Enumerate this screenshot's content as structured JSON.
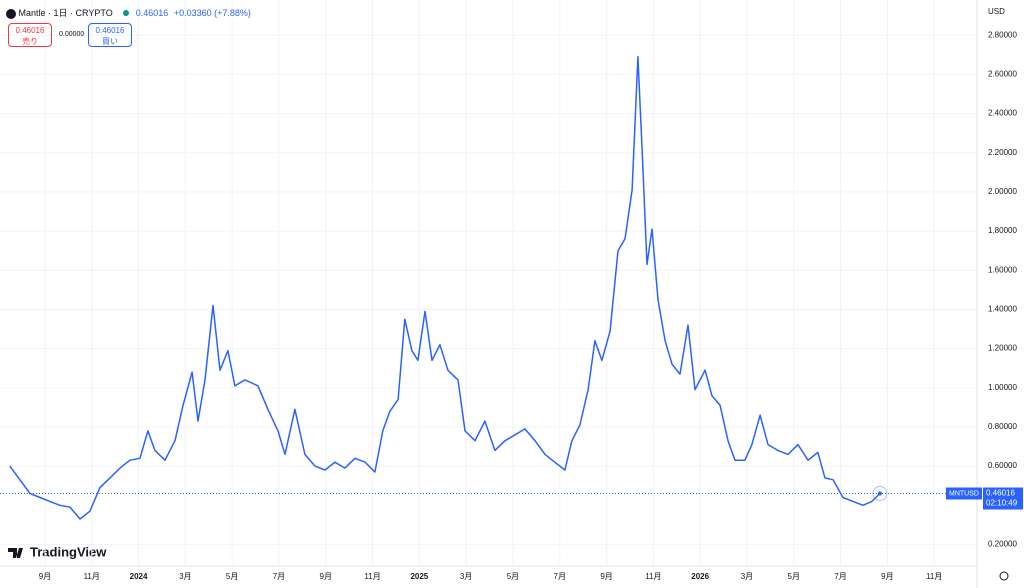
{
  "chart_data": {
    "type": "line",
    "title": "Mantle · 1日 · CRYPTO",
    "currency": "USD",
    "symbol": "MNTUSD",
    "last_price": 0.46016,
    "change": "+0.03360 (+7.88%)",
    "countdown": "02:10:49",
    "sell_price": 0.46016,
    "sell_label": "売り",
    "spread": "0.00000",
    "buy_price": 0.46016,
    "buy_label": "買い",
    "brand": "TradingView",
    "color": "#2962ff",
    "grid": true,
    "xlim": [
      6.08,
      47.83
    ],
    "ylim": [
      0.09,
      2.98
    ],
    "xticks": [
      {
        "value": 8,
        "label": "9月"
      },
      {
        "value": 10,
        "label": "11月"
      },
      {
        "value": 12,
        "label": "2024"
      },
      {
        "value": 14,
        "label": "3月"
      },
      {
        "value": 16,
        "label": "5月"
      },
      {
        "value": 18,
        "label": "7月"
      },
      {
        "value": 20,
        "label": "9月"
      },
      {
        "value": 22,
        "label": "11月"
      },
      {
        "value": 24,
        "label": "2025"
      },
      {
        "value": 26,
        "label": "3月"
      },
      {
        "value": 28,
        "label": "5月"
      },
      {
        "value": 30,
        "label": "7月"
      },
      {
        "value": 32,
        "label": "9月"
      },
      {
        "value": 34,
        "label": "11月"
      },
      {
        "value": 36,
        "label": "2026"
      },
      {
        "value": 38,
        "label": "3月"
      },
      {
        "value": 40,
        "label": "5月"
      },
      {
        "value": 42,
        "label": "7月"
      },
      {
        "value": 44,
        "label": "9月"
      },
      {
        "value": 46,
        "label": "11月"
      }
    ],
    "yticks": [
      {
        "value": 0.2,
        "label": "0.20000"
      },
      {
        "value": 0.6,
        "label": "0.60000"
      },
      {
        "value": 0.8,
        "label": "0.80000"
      },
      {
        "value": 1.0,
        "label": "1.00000"
      },
      {
        "value": 1.2,
        "label": "1.20000"
      },
      {
        "value": 1.4,
        "label": "1.40000"
      },
      {
        "value": 1.6,
        "label": "1.60000"
      },
      {
        "value": 1.8,
        "label": "1.80000"
      },
      {
        "value": 2.0,
        "label": "2.00000"
      },
      {
        "value": 2.2,
        "label": "2.20000"
      },
      {
        "value": 2.4,
        "label": "2.40000"
      },
      {
        "value": 2.6,
        "label": "2.60000"
      },
      {
        "value": 2.8,
        "label": "2.80000"
      }
    ],
    "x": [
      6.5,
      6.93,
      7.36,
      7.79,
      8.21,
      8.64,
      9.07,
      9.5,
      9.92,
      10.35,
      10.78,
      11.21,
      11.63,
      12.06,
      12.4,
      12.7,
      13.13,
      13.56,
      13.9,
      14.29,
      14.54,
      14.84,
      15.18,
      15.48,
      15.82,
      16.12,
      16.55,
      17.1,
      17.53,
      17.96,
      18.26,
      18.68,
      19.11,
      19.54,
      19.97,
      20.39,
      20.82,
      21.25,
      21.68,
      22.1,
      22.44,
      22.74,
      23.09,
      23.38,
      23.68,
      23.94,
      24.24,
      24.54,
      24.88,
      25.22,
      25.65,
      25.95,
      26.38,
      26.8,
      27.23,
      27.66,
      28.09,
      28.51,
      28.94,
      29.37,
      29.79,
      30.22,
      30.52,
      30.86,
      31.21,
      31.5,
      31.8,
      32.15,
      32.49,
      32.79,
      33.09,
      33.34,
      33.51,
      33.73,
      33.94,
      34.2,
      34.5,
      34.8,
      35.14,
      35.48,
      35.78,
      36.21,
      36.5,
      36.85,
      37.19,
      37.49,
      37.91,
      38.21,
      38.56,
      38.9,
      39.32,
      39.75,
      40.18,
      40.61,
      41.03,
      41.33,
      41.68,
      42.1,
      42.53,
      42.96,
      43.34,
      43.68
    ],
    "values": [
      0.6,
      0.53,
      0.46,
      0.44,
      0.42,
      0.4,
      0.39,
      0.33,
      0.37,
      0.49,
      0.54,
      0.59,
      0.63,
      0.64,
      0.78,
      0.68,
      0.63,
      0.73,
      0.91,
      1.08,
      0.83,
      1.04,
      1.42,
      1.09,
      1.19,
      1.01,
      1.04,
      1.01,
      0.89,
      0.78,
      0.66,
      0.89,
      0.66,
      0.6,
      0.58,
      0.62,
      0.59,
      0.64,
      0.62,
      0.57,
      0.78,
      0.88,
      0.94,
      1.35,
      1.19,
      1.14,
      1.39,
      1.14,
      1.22,
      1.09,
      1.04,
      0.78,
      0.73,
      0.83,
      0.68,
      0.73,
      0.76,
      0.79,
      0.73,
      0.66,
      0.62,
      0.58,
      0.73,
      0.81,
      0.99,
      1.24,
      1.14,
      1.29,
      1.7,
      1.76,
      2.01,
      2.69,
      2.24,
      1.63,
      1.81,
      1.45,
      1.24,
      1.12,
      1.07,
      1.32,
      0.99,
      1.09,
      0.96,
      0.91,
      0.73,
      0.63,
      0.63,
      0.71,
      0.86,
      0.71,
      0.68,
      0.66,
      0.71,
      0.63,
      0.67,
      0.54,
      0.53,
      0.44,
      0.42,
      0.4,
      0.42,
      0.46016
    ]
  }
}
